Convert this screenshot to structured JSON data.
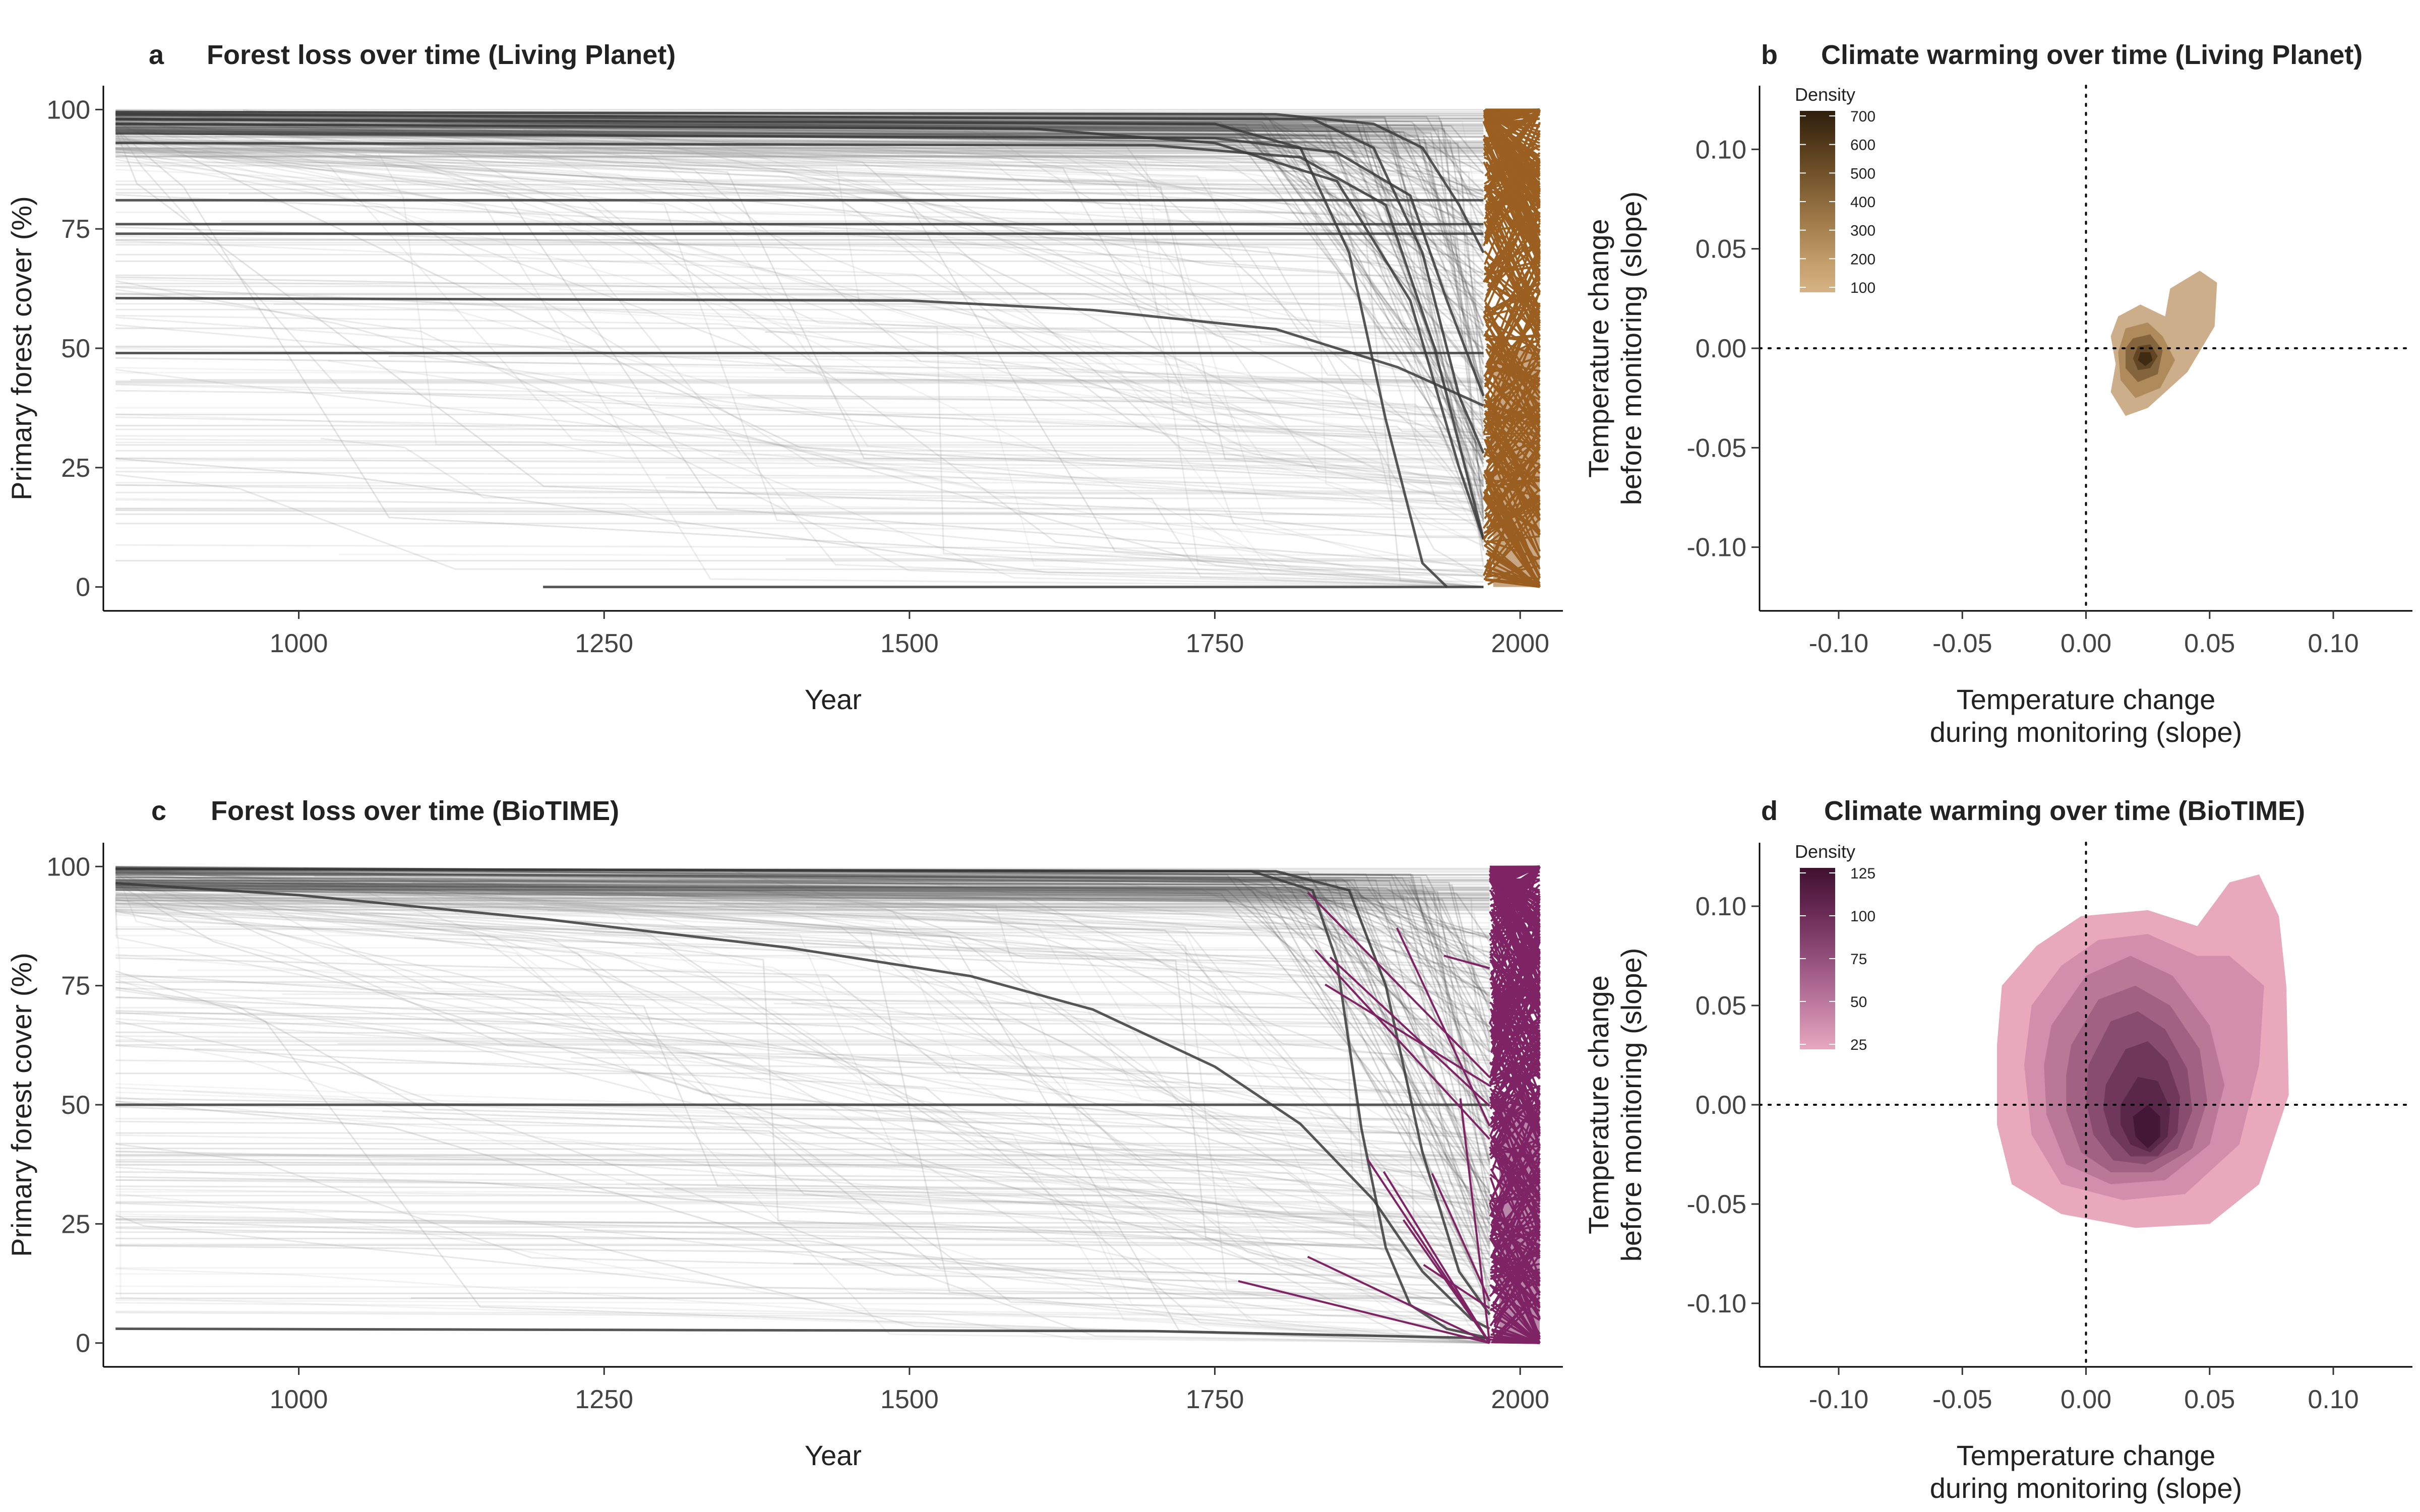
{
  "chart_data": [
    {
      "id": "a",
      "letter": "a",
      "type": "line",
      "title": "Forest loss over time (Living Planet)",
      "xlabel": "Year",
      "ylabel": "Primary forest cover (%)",
      "xlim": [
        840,
        2035
      ],
      "ylim": [
        -5,
        105
      ],
      "xticks": [
        1000,
        1250,
        1500,
        1750,
        2000
      ],
      "yticks": [
        0,
        25,
        50,
        75,
        100
      ],
      "monitoring_color": "#9a5f21",
      "history_color": "#3a3a3a",
      "monitoring_period": [
        1970,
        2016
      ],
      "highlighted_series": [
        {
          "values": [
            [
              850,
              99.5
            ],
            [
              1800,
              99
            ],
            [
              1880,
              97
            ],
            [
              1920,
              92
            ],
            [
              1950,
              80
            ],
            [
              1970,
              70
            ]
          ]
        },
        {
          "values": [
            [
              850,
              95
            ],
            [
              1750,
              94
            ],
            [
              1850,
              91
            ],
            [
              1910,
              82
            ],
            [
              1940,
              60
            ],
            [
              1970,
              40
            ]
          ]
        },
        {
          "values": [
            [
              850,
              93
            ],
            [
              1700,
              92.5
            ],
            [
              1820,
              90
            ],
            [
              1890,
              80
            ],
            [
              1930,
              50
            ],
            [
              1960,
              20
            ],
            [
              1970,
              10
            ]
          ]
        },
        {
          "values": [
            [
              850,
              81
            ],
            [
              1970,
              81
            ]
          ]
        },
        {
          "values": [
            [
              850,
              76
            ],
            [
              1970,
              76
            ]
          ]
        },
        {
          "values": [
            [
              850,
              74
            ],
            [
              1970,
              74
            ]
          ]
        },
        {
          "values": [
            [
              850,
              60.5
            ],
            [
              1500,
              60
            ],
            [
              1650,
              58
            ],
            [
              1800,
              54
            ],
            [
              1900,
              46
            ],
            [
              1970,
              38
            ]
          ]
        },
        {
          "values": [
            [
              850,
              49
            ],
            [
              1970,
              49
            ]
          ]
        },
        {
          "values": [
            [
              850,
              98
            ],
            [
              1750,
              97
            ],
            [
              1820,
              92
            ],
            [
              1860,
              70
            ],
            [
              1890,
              35
            ],
            [
              1920,
              5
            ],
            [
              1940,
              0
            ]
          ]
        },
        {
          "values": [
            [
              850,
              99
            ],
            [
              1830,
              98
            ],
            [
              1880,
              92
            ],
            [
              1920,
              70
            ],
            [
              1950,
              40
            ],
            [
              1970,
              28
            ]
          ]
        },
        {
          "values": [
            [
              1200,
              0
            ],
            [
              1970,
              0
            ]
          ]
        },
        {
          "values": [
            [
              850,
              97
            ],
            [
              1600,
              96
            ],
            [
              1750,
              93
            ],
            [
              1850,
              85
            ],
            [
              1910,
              60
            ],
            [
              1950,
              25
            ],
            [
              1970,
              10
            ]
          ]
        }
      ]
    },
    {
      "id": "b",
      "letter": "b",
      "type": "density",
      "title": "Climate warming over time (Living Planet)",
      "xlabel_lines": [
        "Temperature change",
        "during monitoring (slope)"
      ],
      "ylabel_lines": [
        "Temperature change",
        "before monitoring (slope)"
      ],
      "xlim": [
        -0.132,
        0.132
      ],
      "ylim": [
        -0.132,
        0.132
      ],
      "xticks": [
        -0.1,
        -0.05,
        0.0,
        0.05,
        0.1
      ],
      "yticks": [
        -0.1,
        -0.05,
        0.0,
        0.05,
        0.1
      ],
      "xticklabels": [
        "-0.10",
        "-0.05",
        "0.00",
        "0.05",
        "0.10"
      ],
      "yticklabels": [
        "-0.10",
        "-0.05",
        "0.00",
        "0.05",
        "0.10"
      ],
      "legend_title": "Density",
      "legend_labels": [
        "700",
        "600",
        "500",
        "400",
        "300",
        "200",
        "100"
      ],
      "legend_colors": [
        "#2e1f0d",
        "#4f3719",
        "#6f5028",
        "#8d6a3c",
        "#a98452",
        "#c39e6b",
        "#d6b385"
      ],
      "legend_position": "top-left",
      "fill_colors": [
        "#c4a077",
        "#a98452",
        "#7d5d37",
        "#5a4122",
        "#38270f"
      ],
      "fill_opacity": 0.85,
      "contours": [
        [
          [
            0.013,
            0.016
          ],
          [
            0.022,
            0.022
          ],
          [
            0.032,
            0.016
          ],
          [
            0.034,
            0.03
          ],
          [
            0.046,
            0.039
          ],
          [
            0.053,
            0.033
          ],
          [
            0.052,
            0.011
          ],
          [
            0.041,
            -0.012
          ],
          [
            0.025,
            -0.03
          ],
          [
            0.016,
            -0.034
          ],
          [
            0.01,
            -0.022
          ],
          [
            0.012,
            -0.008
          ],
          [
            0.01,
            0.006
          ]
        ],
        [
          [
            0.016,
            0.01
          ],
          [
            0.025,
            0.013
          ],
          [
            0.031,
            0.006
          ],
          [
            0.036,
            -0.006
          ],
          [
            0.03,
            -0.02
          ],
          [
            0.02,
            -0.025
          ],
          [
            0.014,
            -0.016
          ],
          [
            0.013,
            -0.002
          ]
        ],
        [
          [
            0.019,
            0.005
          ],
          [
            0.026,
            0.007
          ],
          [
            0.031,
            -0.001
          ],
          [
            0.029,
            -0.013
          ],
          [
            0.021,
            -0.017
          ],
          [
            0.016,
            -0.01
          ],
          [
            0.016,
            0.0
          ]
        ],
        [
          [
            0.021,
            0.001
          ],
          [
            0.026,
            0.002
          ],
          [
            0.029,
            -0.004
          ],
          [
            0.026,
            -0.01
          ],
          [
            0.021,
            -0.011
          ],
          [
            0.019,
            -0.005
          ]
        ],
        [
          [
            0.022,
            -0.002
          ],
          [
            0.026,
            -0.002
          ],
          [
            0.027,
            -0.006
          ],
          [
            0.024,
            -0.009
          ],
          [
            0.021,
            -0.006
          ]
        ]
      ]
    },
    {
      "id": "c",
      "letter": "c",
      "type": "line",
      "title": "Forest loss over time (BioTIME)",
      "xlabel": "Year",
      "ylabel": "Primary forest cover (%)",
      "xlim": [
        840,
        2035
      ],
      "ylim": [
        -5,
        105
      ],
      "xticks": [
        1000,
        1250,
        1500,
        1750,
        2000
      ],
      "yticks": [
        0,
        25,
        50,
        75,
        100
      ],
      "monitoring_color": "#7e2464",
      "history_color": "#3a3a3a",
      "monitoring_period": [
        1975,
        2016
      ],
      "highlighted_series": [
        {
          "values": [
            [
              850,
              96.5
            ],
            [
              1000,
              94
            ],
            [
              1200,
              89
            ],
            [
              1400,
              83
            ],
            [
              1550,
              77
            ],
            [
              1650,
              70
            ],
            [
              1750,
              58
            ],
            [
              1820,
              46
            ],
            [
              1880,
              30
            ],
            [
              1920,
              15
            ],
            [
              1960,
              5
            ],
            [
              1975,
              3
            ]
          ]
        },
        {
          "values": [
            [
              850,
              99.5
            ],
            [
              1780,
              99
            ],
            [
              1830,
              95
            ],
            [
              1850,
              80
            ],
            [
              1870,
              45
            ],
            [
              1890,
              20
            ],
            [
              1910,
              8
            ],
            [
              1940,
              3
            ],
            [
              1975,
              1
            ]
          ]
        },
        {
          "values": [
            [
              850,
              99.5
            ],
            [
              1800,
              99
            ],
            [
              1860,
              95
            ],
            [
              1890,
              75
            ],
            [
              1920,
              40
            ],
            [
              1950,
              15
            ],
            [
              1975,
              6
            ]
          ]
        },
        {
          "values": [
            [
              850,
              50
            ],
            [
              1975,
              50
            ]
          ]
        },
        {
          "values": [
            [
              850,
              3
            ],
            [
              1700,
              2.5
            ],
            [
              1975,
              1
            ]
          ]
        }
      ]
    },
    {
      "id": "d",
      "letter": "d",
      "type": "density",
      "title": "Climate warming over time (BioTIME)",
      "xlabel_lines": [
        "Temperature change",
        "during monitoring (slope)"
      ],
      "ylabel_lines": [
        "Temperature change",
        "before monitoring (slope)"
      ],
      "xlim": [
        -0.132,
        0.132
      ],
      "ylim": [
        -0.132,
        0.132
      ],
      "xticks": [
        -0.1,
        -0.05,
        0.0,
        0.05,
        0.1
      ],
      "yticks": [
        -0.1,
        -0.05,
        0.0,
        0.05,
        0.1
      ],
      "xticklabels": [
        "-0.10",
        "-0.05",
        "0.00",
        "0.05",
        "0.10"
      ],
      "yticklabels": [
        "-0.10",
        "-0.05",
        "0.00",
        "0.05",
        "0.10"
      ],
      "legend_title": "Density",
      "legend_labels": [
        "125",
        "100",
        "75",
        "50",
        "25"
      ],
      "legend_colors": [
        "#3f1130",
        "#6a2b55",
        "#93507c",
        "#bd7aa0",
        "#e7a8bd"
      ],
      "legend_position": "top-left",
      "fill_colors": [
        "#e8a9bd",
        "#d28fab",
        "#b97896",
        "#a06182",
        "#874c6e",
        "#6f385a",
        "#592748",
        "#431735"
      ],
      "fill_opacity": 1,
      "contours": [
        [
          [
            -0.034,
            0.06
          ],
          [
            -0.02,
            0.08
          ],
          [
            -0.002,
            0.095
          ],
          [
            0.025,
            0.098
          ],
          [
            0.045,
            0.09
          ],
          [
            0.058,
            0.112
          ],
          [
            0.07,
            0.116
          ],
          [
            0.078,
            0.095
          ],
          [
            0.081,
            0.06
          ],
          [
            0.082,
            0.005
          ],
          [
            0.07,
            -0.04
          ],
          [
            0.05,
            -0.06
          ],
          [
            0.02,
            -0.062
          ],
          [
            -0.01,
            -0.055
          ],
          [
            -0.03,
            -0.04
          ],
          [
            -0.036,
            -0.01
          ],
          [
            -0.036,
            0.03
          ]
        ],
        [
          [
            -0.022,
            0.05
          ],
          [
            -0.01,
            0.07
          ],
          [
            0.005,
            0.083
          ],
          [
            0.025,
            0.086
          ],
          [
            0.045,
            0.075
          ],
          [
            0.058,
            0.075
          ],
          [
            0.072,
            0.06
          ],
          [
            0.07,
            0.02
          ],
          [
            0.062,
            -0.02
          ],
          [
            0.04,
            -0.045
          ],
          [
            0.015,
            -0.048
          ],
          [
            -0.01,
            -0.04
          ],
          [
            -0.022,
            -0.015
          ],
          [
            -0.025,
            0.02
          ]
        ],
        [
          [
            -0.014,
            0.04
          ],
          [
            0.0,
            0.065
          ],
          [
            0.018,
            0.075
          ],
          [
            0.035,
            0.065
          ],
          [
            0.05,
            0.04
          ],
          [
            0.056,
            0.01
          ],
          [
            0.05,
            -0.02
          ],
          [
            0.032,
            -0.038
          ],
          [
            0.01,
            -0.04
          ],
          [
            -0.008,
            -0.03
          ],
          [
            -0.016,
            -0.005
          ],
          [
            -0.017,
            0.02
          ]
        ],
        [
          [
            -0.006,
            0.03
          ],
          [
            0.005,
            0.053
          ],
          [
            0.02,
            0.06
          ],
          [
            0.034,
            0.05
          ],
          [
            0.046,
            0.028
          ],
          [
            0.049,
            0.002
          ],
          [
            0.043,
            -0.022
          ],
          [
            0.027,
            -0.034
          ],
          [
            0.01,
            -0.034
          ],
          [
            -0.002,
            -0.024
          ],
          [
            -0.008,
            -0.003
          ],
          [
            -0.008,
            0.015
          ]
        ],
        [
          [
            0.001,
            0.02
          ],
          [
            0.01,
            0.042
          ],
          [
            0.021,
            0.047
          ],
          [
            0.032,
            0.038
          ],
          [
            0.041,
            0.018
          ],
          [
            0.043,
            -0.003
          ],
          [
            0.037,
            -0.022
          ],
          [
            0.024,
            -0.03
          ],
          [
            0.011,
            -0.028
          ],
          [
            0.003,
            -0.015
          ],
          [
            0.0,
            0.002
          ]
        ],
        [
          [
            0.008,
            0.01
          ],
          [
            0.016,
            0.028
          ],
          [
            0.025,
            0.032
          ],
          [
            0.033,
            0.022
          ],
          [
            0.038,
            0.004
          ],
          [
            0.037,
            -0.014
          ],
          [
            0.029,
            -0.026
          ],
          [
            0.018,
            -0.026
          ],
          [
            0.01,
            -0.015
          ],
          [
            0.007,
            -0.002
          ]
        ],
        [
          [
            0.014,
            0.0
          ],
          [
            0.021,
            0.014
          ],
          [
            0.029,
            0.012
          ],
          [
            0.034,
            -0.002
          ],
          [
            0.033,
            -0.016
          ],
          [
            0.026,
            -0.024
          ],
          [
            0.018,
            -0.02
          ],
          [
            0.014,
            -0.01
          ]
        ],
        [
          [
            0.019,
            -0.006
          ],
          [
            0.025,
            0.0
          ],
          [
            0.03,
            -0.006
          ],
          [
            0.03,
            -0.016
          ],
          [
            0.025,
            -0.022
          ],
          [
            0.02,
            -0.016
          ]
        ]
      ]
    }
  ]
}
